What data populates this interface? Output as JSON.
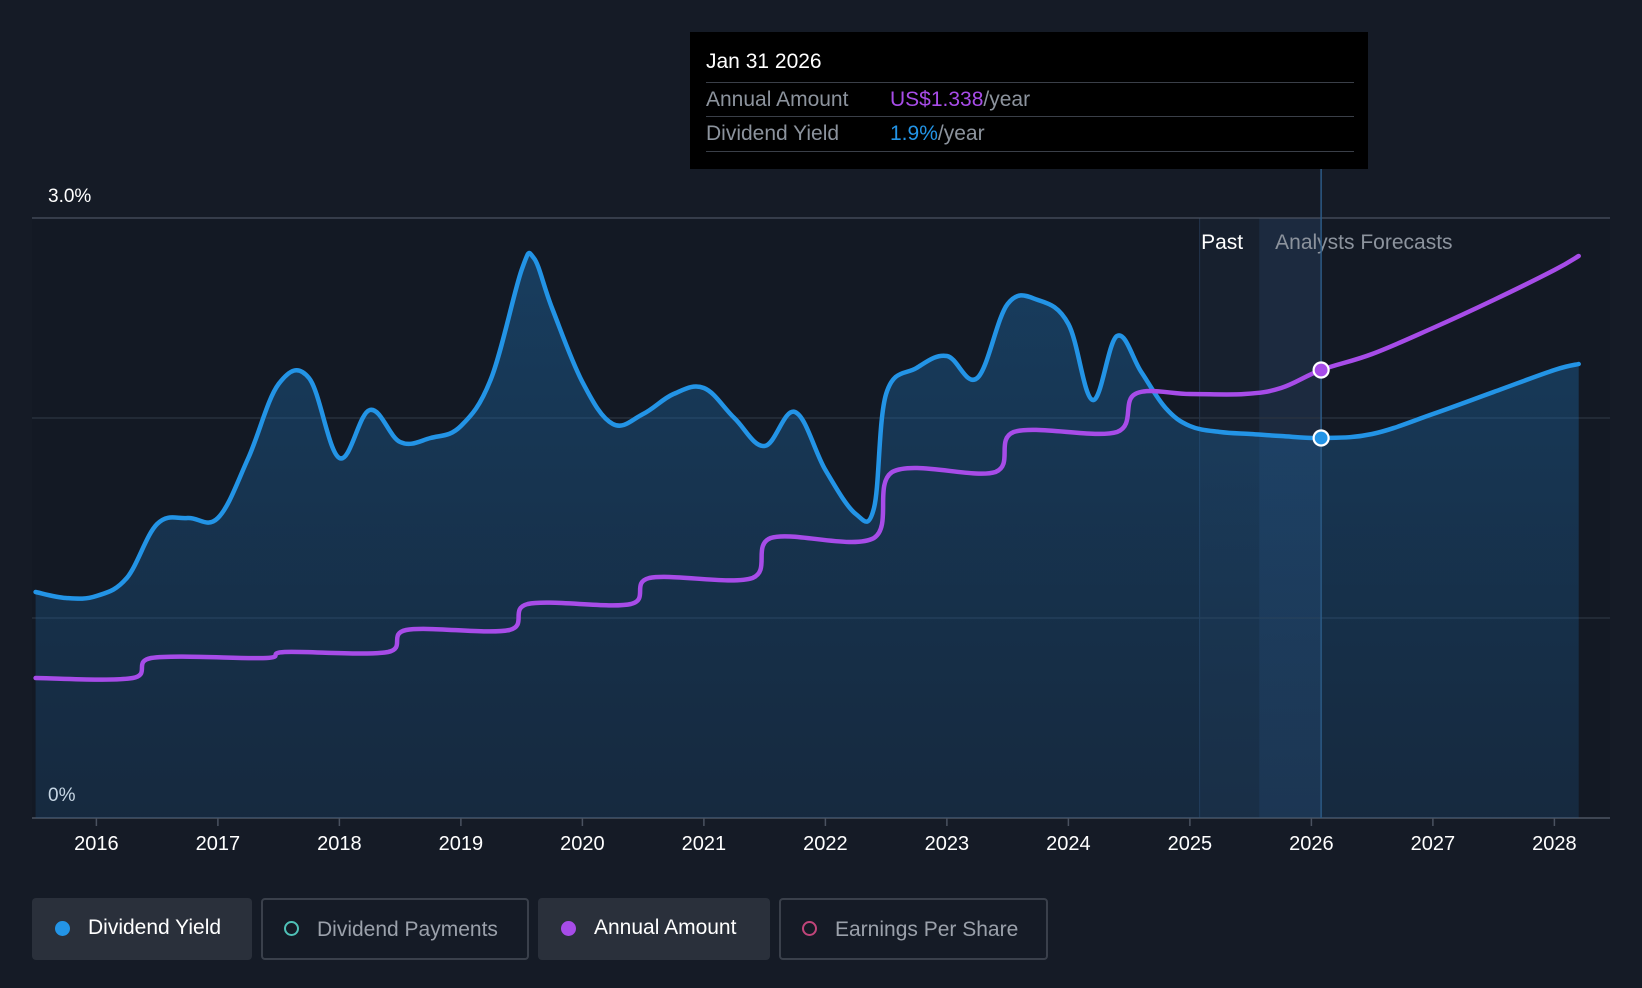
{
  "tooltip": {
    "date": "Jan 31 2026",
    "rows": [
      {
        "label": "Annual Amount",
        "value": "US$1.338",
        "unit": "/year"
      },
      {
        "label": "Dividend Yield",
        "value": "1.9%",
        "unit": "/year"
      }
    ]
  },
  "legend": [
    {
      "label": "Dividend Yield",
      "active": true,
      "color": "#2394e6",
      "filled": true
    },
    {
      "label": "Dividend Payments",
      "active": false,
      "color": "#4fc1b7",
      "filled": false
    },
    {
      "label": "Annual Amount",
      "active": true,
      "color": "#a74ce8",
      "filled": true
    },
    {
      "label": "Earnings Per Share",
      "active": false,
      "color": "#c0457a",
      "filled": false
    }
  ],
  "chart_data": {
    "type": "line",
    "title": "",
    "xlabel": "",
    "ylabel": "",
    "y_tick_labels": [
      "3.0%",
      "0%"
    ],
    "ylim": [
      0,
      3.0
    ],
    "xlim": [
      2015.47,
      2028.2
    ],
    "x_tick_labels": [
      "2016",
      "2017",
      "2018",
      "2019",
      "2020",
      "2021",
      "2022",
      "2023",
      "2024",
      "2025",
      "2026",
      "2027",
      "2028"
    ],
    "x_tick_values": [
      2016,
      2017,
      2018,
      2019,
      2020,
      2021,
      2022,
      2023,
      2024,
      2025,
      2026,
      2027,
      2028
    ],
    "regions": {
      "past_label": "Past",
      "forecast_label": "Analysts Forecasts",
      "past_start": 2025.08,
      "forecast_start": 2025.57,
      "tooltip_x": 2026.08
    },
    "series": [
      {
        "name": "Dividend Yield",
        "color": "#2394e6",
        "area": true,
        "x": [
          2015.5,
          2015.75,
          2016.0,
          2016.25,
          2016.5,
          2016.75,
          2017.0,
          2017.25,
          2017.5,
          2017.75,
          2018.0,
          2018.25,
          2018.5,
          2018.75,
          2019.0,
          2019.25,
          2019.5,
          2019.6,
          2019.75,
          2020.0,
          2020.25,
          2020.5,
          2020.75,
          2021.0,
          2021.25,
          2021.5,
          2021.75,
          2022.0,
          2022.25,
          2022.4,
          2022.5,
          2022.75,
          2023.0,
          2023.25,
          2023.5,
          2023.75,
          2024.0,
          2024.2,
          2024.4,
          2024.6,
          2024.8,
          2025.0,
          2025.25,
          2025.5,
          2025.75,
          2026.08,
          2026.5,
          2027.0,
          2027.5,
          2028.0,
          2028.2
        ],
        "values": [
          1.13,
          1.1,
          1.11,
          1.2,
          1.47,
          1.5,
          1.5,
          1.8,
          2.17,
          2.2,
          1.8,
          2.04,
          1.88,
          1.9,
          1.96,
          2.2,
          2.74,
          2.8,
          2.55,
          2.18,
          1.97,
          2.02,
          2.12,
          2.15,
          2.0,
          1.86,
          2.03,
          1.74,
          1.52,
          1.55,
          2.12,
          2.25,
          2.31,
          2.2,
          2.57,
          2.59,
          2.47,
          2.09,
          2.41,
          2.23,
          2.05,
          1.96,
          1.93,
          1.92,
          1.91,
          1.9,
          1.92,
          2.02,
          2.13,
          2.24,
          2.27
        ]
      },
      {
        "name": "Annual Amount",
        "color": "#a74ce8",
        "area": false,
        "x": [
          2015.5,
          2016.3,
          2016.45,
          2017.4,
          2017.55,
          2018.4,
          2018.55,
          2019.4,
          2019.55,
          2020.4,
          2020.55,
          2021.4,
          2021.55,
          2022.4,
          2022.55,
          2023.4,
          2023.55,
          2024.4,
          2024.55,
          2025.0,
          2025.45,
          2025.75,
          2026.08,
          2026.5,
          2027.0,
          2027.5,
          2028.0,
          2028.2
        ],
        "values": [
          0.7,
          0.7,
          0.8,
          0.8,
          0.83,
          0.83,
          0.94,
          0.94,
          1.07,
          1.07,
          1.2,
          1.2,
          1.4,
          1.4,
          1.73,
          1.73,
          1.93,
          1.93,
          2.12,
          2.12,
          2.12,
          2.15,
          2.24,
          2.32,
          2.45,
          2.59,
          2.74,
          2.81
        ]
      }
    ],
    "markers": [
      {
        "series": "Annual Amount",
        "x": 2026.08,
        "value": 2.24
      },
      {
        "series": "Dividend Yield",
        "x": 2026.08,
        "value": 1.9
      }
    ]
  }
}
